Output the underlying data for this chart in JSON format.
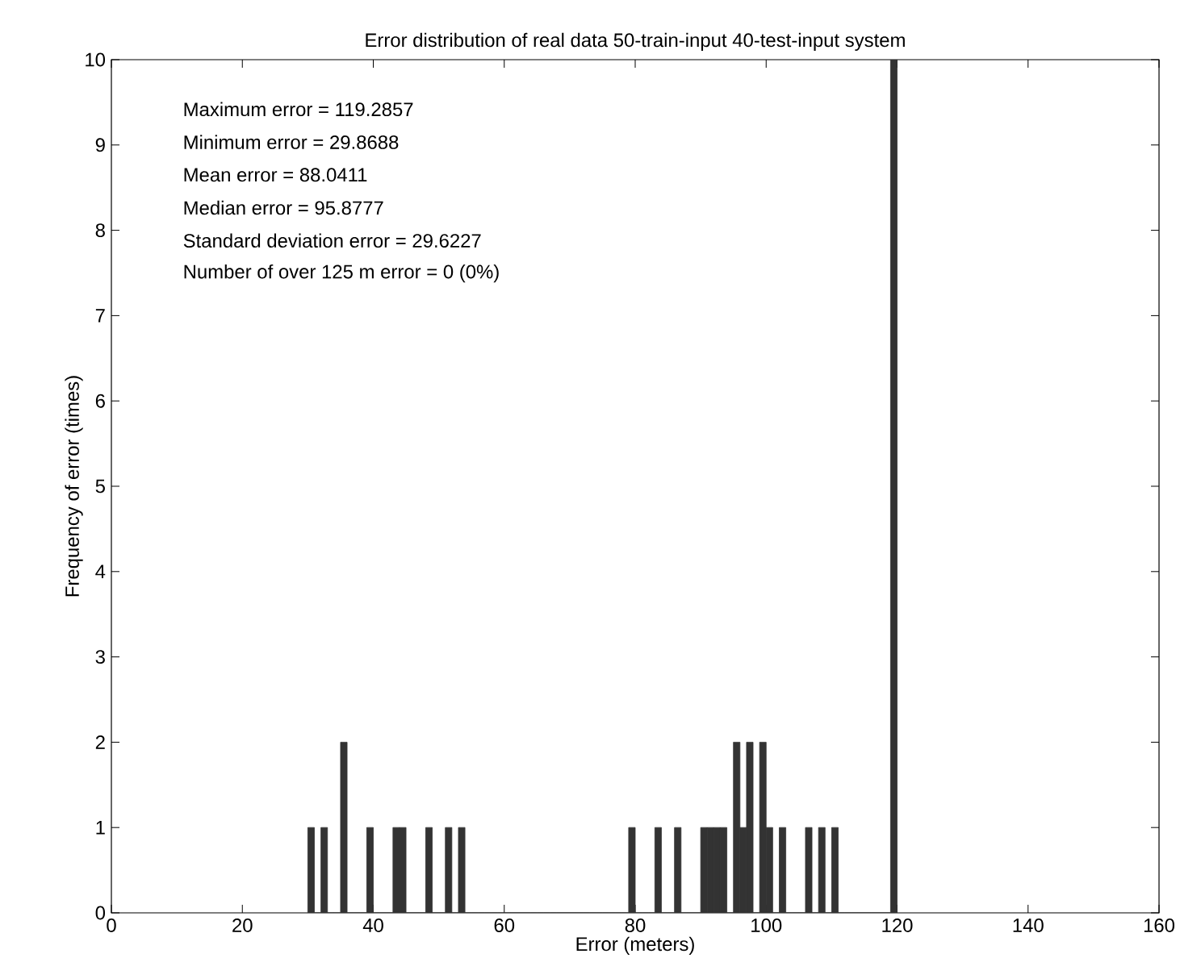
{
  "chart_data": {
    "type": "histogram",
    "title": "Error distribution of real data 50-train-input 40-test-input system",
    "xlabel": "Error (meters)",
    "ylabel": "Frequency of error (times)",
    "bins": [
      30,
      31,
      32,
      33,
      34,
      35,
      36,
      37,
      38,
      39,
      40,
      41,
      42,
      43,
      44,
      45,
      46,
      47,
      48,
      49,
      50,
      51,
      52,
      53,
      54,
      55,
      56,
      57,
      58,
      59,
      60,
      61,
      62,
      63,
      64,
      65,
      66,
      67,
      68,
      69,
      70,
      71,
      72,
      73,
      74,
      75,
      76,
      77,
      78,
      79,
      80,
      81,
      82,
      83,
      84,
      85,
      86,
      87,
      88,
      89,
      90,
      91,
      92,
      93,
      94,
      95,
      96,
      97,
      98,
      99,
      100,
      101,
      102,
      103,
      104,
      105,
      106,
      107,
      108,
      109,
      110,
      111,
      112,
      113,
      114,
      115,
      116,
      117,
      118,
      119,
      120
    ],
    "values": [
      1,
      0,
      1,
      0,
      0,
      2,
      0,
      0,
      0,
      1,
      0,
      0,
      0,
      1,
      1,
      0,
      0,
      0,
      1,
      0,
      0,
      1,
      0,
      1,
      0,
      0,
      0,
      0,
      0,
      0,
      0,
      0,
      0,
      0,
      0,
      0,
      0,
      0,
      0,
      0,
      0,
      0,
      0,
      0,
      0,
      0,
      0,
      0,
      0,
      1,
      0,
      0,
      0,
      1,
      0,
      0,
      1,
      0,
      0,
      0,
      1,
      1,
      1,
      1,
      0,
      2,
      1,
      2,
      0,
      2,
      1,
      0,
      1,
      0,
      0,
      0,
      1,
      0,
      1,
      0,
      1,
      0,
      0,
      0,
      0,
      0,
      0,
      0,
      0,
      10
    ],
    "color": "#333333",
    "xlim": [
      0,
      160
    ],
    "ylim": [
      0,
      10
    ],
    "xticks": [
      0,
      20,
      40,
      60,
      80,
      100,
      120,
      140,
      160
    ],
    "yticks": [
      0,
      1,
      2,
      3,
      4,
      5,
      6,
      7,
      8,
      9,
      10
    ],
    "annotations": [
      "Maximum error = 119.2857",
      "Minimum error = 29.8688",
      "Mean error = 88.0411",
      "Median error = 95.8777",
      "Standard deviation error = 29.6227",
      "Number of over 125 m error = 0 (0%)"
    ]
  }
}
